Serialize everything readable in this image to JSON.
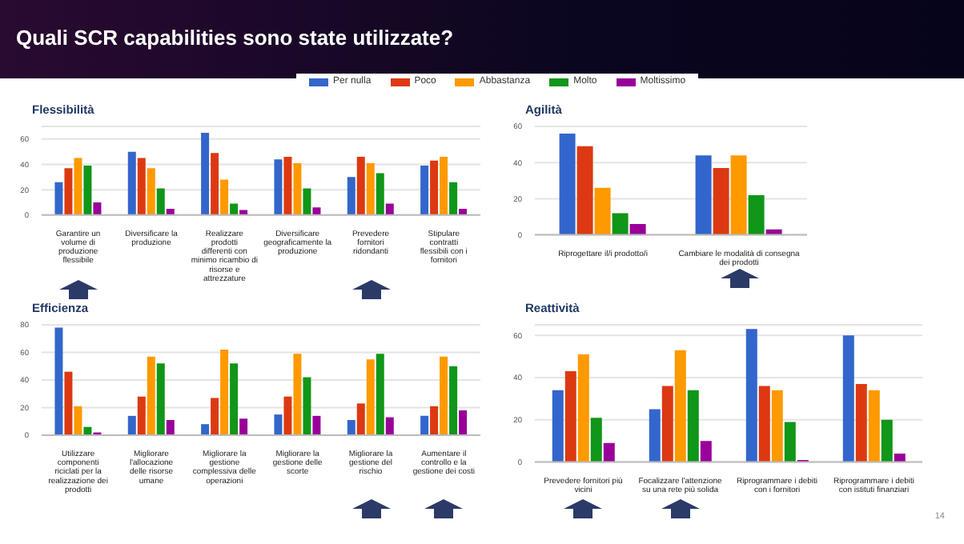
{
  "chart_data": [
    {
      "type": "bar",
      "title": "Flessibilità",
      "annotations": [
        "Quali SCR capabilities sono state utilizzate?"
      ],
      "legend": "top",
      "grid": "y",
      "ylim": [
        0,
        70
      ],
      "yticks": [
        0,
        20,
        40,
        60
      ],
      "categories": [
        "Garantire un volume di produzione flessibile",
        "Diversificare la produzione",
        "Realizzare prodotti differenti con minimo ricambio di risorse e attrezzature",
        "Diversificare geograficamente la produzione",
        "Prevedere fornitori ridondanti",
        "Stipulare contratti flessibili con i fornitori"
      ],
      "series": [
        {
          "name": "Per nulla",
          "color": "#3366cc",
          "values": [
            26,
            50,
            65,
            44,
            30,
            39
          ]
        },
        {
          "name": "Poco",
          "color": "#dc3912",
          "values": [
            37,
            45,
            49,
            46,
            46,
            43
          ]
        },
        {
          "name": "Abbastanza",
          "color": "#ff9900",
          "values": [
            45,
            37,
            28,
            41,
            41,
            46
          ]
        },
        {
          "name": "Molto",
          "color": "#109618",
          "values": [
            39,
            21,
            9,
            21,
            33,
            26
          ]
        },
        {
          "name": "Moltissimo",
          "color": "#990099",
          "values": [
            10,
            5,
            4,
            6,
            9,
            5
          ]
        }
      ]
    },
    {
      "type": "bar",
      "title": "Agilità",
      "grid": "y",
      "ylim": [
        0,
        60
      ],
      "yticks": [
        0,
        20,
        40,
        60
      ],
      "categories": [
        "Riprogettare il/i prodotto/i",
        "Cambiare le modalità di consegna dei prodotti"
      ],
      "series": [
        {
          "color": "#3366cc",
          "values": [
            56,
            44
          ]
        },
        {
          "color": "#dc3912",
          "values": [
            49,
            37
          ]
        },
        {
          "color": "#ff9900",
          "values": [
            26,
            44
          ]
        },
        {
          "color": "#109618",
          "values": [
            12,
            22
          ]
        },
        {
          "color": "#990099",
          "values": [
            6,
            3
          ]
        }
      ]
    },
    {
      "type": "bar",
      "title": "Efficienza",
      "grid": "y",
      "ylim": [
        0,
        80
      ],
      "yticks": [
        0,
        20,
        40,
        60,
        80
      ],
      "categories": [
        "Utilizzare componenti riciclati per la realizzazione dei prodotti",
        "Migliorare l'allocazione delle risorse umane",
        "Migliorare la gestione complessiva delle operazioni",
        "Migliorare la gestione delle scorte",
        "Migliorare la gestione del rischio",
        "Aumentare il controllo e la gestione dei costi"
      ],
      "series": [
        {
          "color": "#3366cc",
          "values": [
            78,
            14,
            8,
            15,
            11,
            14
          ]
        },
        {
          "color": "#dc3912",
          "values": [
            46,
            28,
            27,
            28,
            23,
            21
          ]
        },
        {
          "color": "#ff9900",
          "values": [
            21,
            57,
            62,
            59,
            55,
            57
          ]
        },
        {
          "color": "#109618",
          "values": [
            6,
            52,
            52,
            42,
            59,
            50
          ]
        },
        {
          "color": "#990099",
          "values": [
            2,
            11,
            12,
            14,
            13,
            18
          ]
        }
      ]
    },
    {
      "type": "bar",
      "title": "Reattività",
      "annotations": [
        "14"
      ],
      "grid": "y",
      "ylim": [
        0,
        65
      ],
      "yticks": [
        0,
        20,
        40,
        60
      ],
      "categories": [
        "Prevedere fornitori più vicini",
        "Focalizzare l'attenzione su una rete più solida",
        "Riprogrammare i debiti con i fornitori",
        "Riprogrammare i debiti con istituti finanziari"
      ],
      "series": [
        {
          "color": "#3366cc",
          "values": [
            34,
            25,
            63,
            60
          ]
        },
        {
          "color": "#dc3912",
          "values": [
            43,
            36,
            36,
            37
          ]
        },
        {
          "color": "#ff9900",
          "values": [
            51,
            53,
            34,
            34
          ]
        },
        {
          "color": "#109618",
          "values": [
            21,
            34,
            19,
            20
          ]
        },
        {
          "color": "#990099",
          "values": [
            9,
            10,
            1,
            4
          ]
        }
      ]
    }
  ]
}
